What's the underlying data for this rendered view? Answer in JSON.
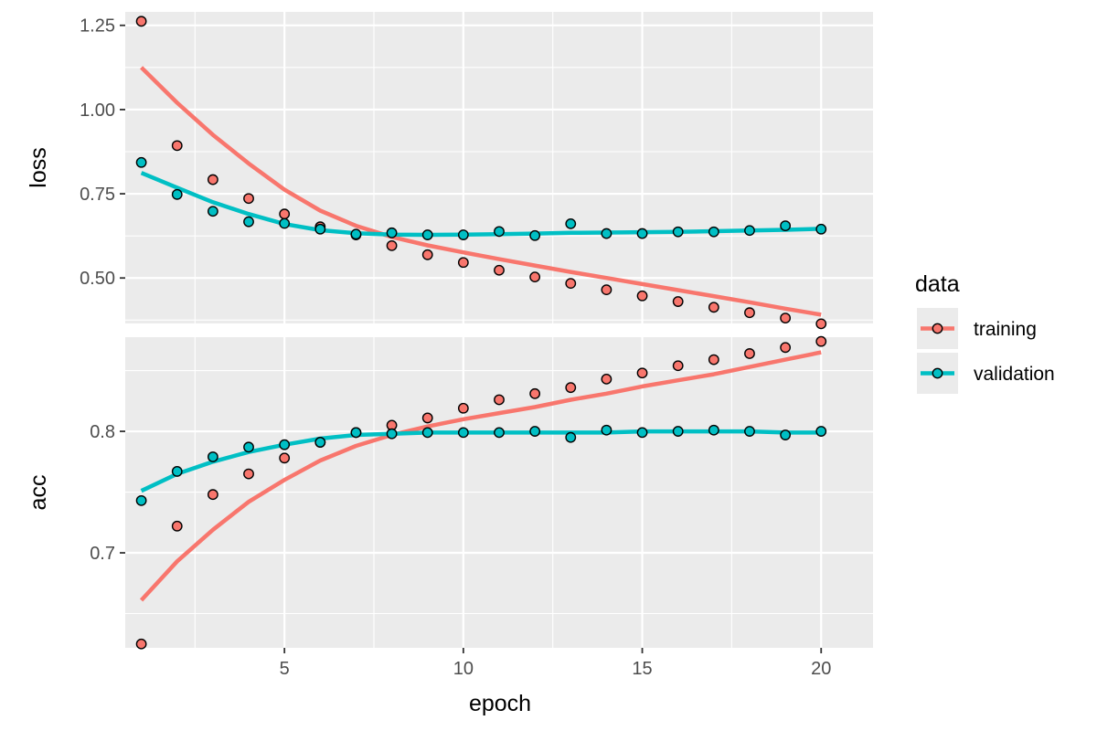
{
  "chart_data": {
    "type": "scatter",
    "x_label": "epoch",
    "x_ticks": [
      5,
      10,
      15,
      20
    ],
    "xlim": [
      0.55,
      21.45
    ],
    "epochs": [
      1,
      2,
      3,
      4,
      5,
      6,
      7,
      8,
      9,
      10,
      11,
      12,
      13,
      14,
      15,
      16,
      17,
      18,
      19,
      20
    ],
    "legend": {
      "title": "data",
      "placement": "right",
      "entries": [
        "training",
        "validation"
      ]
    },
    "colors": {
      "training": "#F8766D",
      "validation": "#00BFC4"
    },
    "panels": [
      {
        "name": "loss",
        "ylim": [
          0.365,
          1.29
        ],
        "y_ticks": [
          0.5,
          0.75,
          1.0
        ],
        "y_tick_labels": [
          "0.50",
          "0.75",
          "1.00",
          "1.25"
        ],
        "y_ticks_all": [
          0.5,
          0.75,
          1.0,
          1.25
        ],
        "series": [
          {
            "name": "training",
            "points": [
              1.262,
              0.893,
              0.792,
              0.736,
              0.69,
              0.652,
              0.628,
              0.596,
              0.569,
              0.546,
              0.523,
              0.503,
              0.484,
              0.465,
              0.447,
              0.43,
              0.413,
              0.397,
              0.381,
              0.364
            ],
            "smooth": [
              1.125,
              1.02,
              0.925,
              0.84,
              0.762,
              0.7,
              0.655,
              0.622,
              0.597,
              0.576,
              0.556,
              0.537,
              0.518,
              0.5,
              0.482,
              0.464,
              0.446,
              0.428,
              0.409,
              0.391
            ]
          },
          {
            "name": "validation",
            "points": [
              0.843,
              0.748,
              0.698,
              0.667,
              0.662,
              0.645,
              0.63,
              0.634,
              0.628,
              0.628,
              0.638,
              0.626,
              0.661,
              0.632,
              0.632,
              0.637,
              0.637,
              0.641,
              0.655,
              0.645
            ],
            "smooth": [
              0.812,
              0.768,
              0.725,
              0.69,
              0.66,
              0.642,
              0.633,
              0.629,
              0.628,
              0.629,
              0.63,
              0.632,
              0.634,
              0.635,
              0.636,
              0.637,
              0.639,
              0.641,
              0.643,
              0.646
            ]
          }
        ]
      },
      {
        "name": "acc",
        "ylim": [
          0.6218,
          0.8775
        ],
        "y_ticks_all": [
          0.7,
          0.8
        ],
        "y_tick_labels": [
          "0.7",
          "0.8"
        ],
        "series": [
          {
            "name": "training",
            "points": [
              0.625,
              0.722,
              0.748,
              0.765,
              0.778,
              0.791,
              0.799,
              0.805,
              0.811,
              0.819,
              0.826,
              0.831,
              0.836,
              0.843,
              0.848,
              0.854,
              0.859,
              0.864,
              0.869,
              0.874
            ],
            "smooth": [
              0.661,
              0.693,
              0.719,
              0.742,
              0.76,
              0.776,
              0.788,
              0.797,
              0.804,
              0.81,
              0.815,
              0.82,
              0.826,
              0.831,
              0.837,
              0.842,
              0.847,
              0.853,
              0.859,
              0.865
            ]
          },
          {
            "name": "validation",
            "points": [
              0.743,
              0.767,
              0.779,
              0.787,
              0.789,
              0.791,
              0.799,
              0.798,
              0.799,
              0.799,
              0.799,
              0.8,
              0.795,
              0.801,
              0.799,
              0.8,
              0.801,
              0.8,
              0.797,
              0.8
            ],
            "smooth": [
              0.751,
              0.765,
              0.775,
              0.783,
              0.789,
              0.794,
              0.797,
              0.798,
              0.799,
              0.799,
              0.799,
              0.799,
              0.799,
              0.799,
              0.8,
              0.8,
              0.8,
              0.8,
              0.799,
              0.799
            ]
          }
        ]
      }
    ]
  }
}
